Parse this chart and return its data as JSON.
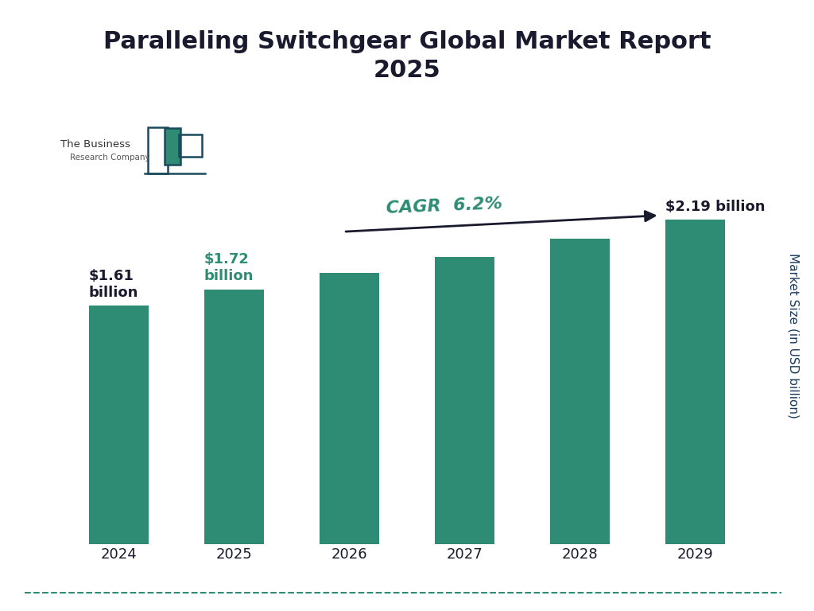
{
  "title": "Paralleling Switchgear Global Market Report\n2025",
  "years": [
    "2024",
    "2025",
    "2026",
    "2027",
    "2028",
    "2029"
  ],
  "values": [
    1.61,
    1.72,
    1.83,
    1.94,
    2.06,
    2.19
  ],
  "bar_color": "#2E8B74",
  "label_2024": "$1.61\nbillion",
  "label_2025": "$1.72\nbillion",
  "label_2029": "$2.19 billion",
  "label_2024_color": "#1a1a2e",
  "label_2025_color": "#2E8B74",
  "label_2029_color": "#1a1a2e",
  "cagr_text": "CAGR  6.2%",
  "cagr_color": "#2E8B74",
  "ylabel": "Market Size (in USD billion)",
  "ylabel_color": "#1a3a5c",
  "background_color": "#ffffff",
  "title_color": "#1a1a2e",
  "tick_color": "#1a1a2e",
  "border_color": "#2E8B74",
  "logo_text1": "The Business",
  "logo_text2": "Research Company",
  "ylim": [
    0,
    2.85
  ],
  "bar_width": 0.52,
  "title_fontsize": 22,
  "tick_fontsize": 13,
  "label_fontsize": 13
}
